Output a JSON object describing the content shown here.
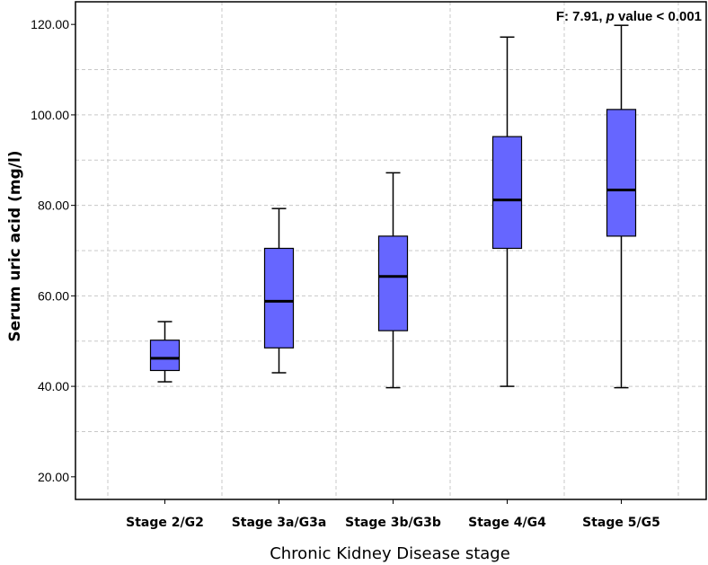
{
  "chart_data": {
    "type": "box",
    "xlabel": "Chronic Kidney Disease stage",
    "ylabel": "Serum uric acid (mg/l)",
    "annotation": {
      "prefix": "F: 7.91, ",
      "italic": "p",
      "suffix": " value < 0.001"
    },
    "ylim": [
      15,
      125
    ],
    "yticks": [
      20,
      40,
      60,
      80,
      100,
      120
    ],
    "ytick_labels": [
      "20.00",
      "40.00",
      "60.00",
      "80.00",
      "100.00",
      "120.00"
    ],
    "grid": true,
    "box_color": "#6666ff",
    "categories": [
      "Stage 2/G2",
      "Stage 3a/G3a",
      "Stage 3b/G3b",
      "Stage 4/G4",
      "Stage 5/G5"
    ],
    "boxes": [
      {
        "min": 41.0,
        "q1": 43.5,
        "median": 46.2,
        "q3": 50.2,
        "max": 54.3
      },
      {
        "min": 43.0,
        "q1": 48.5,
        "median": 58.8,
        "q3": 70.5,
        "max": 79.3
      },
      {
        "min": 39.7,
        "q1": 52.3,
        "median": 64.3,
        "q3": 73.2,
        "max": 87.2
      },
      {
        "min": 40.0,
        "q1": 70.5,
        "median": 81.2,
        "q3": 95.2,
        "max": 117.2
      },
      {
        "min": 39.7,
        "q1": 73.2,
        "median": 83.4,
        "q3": 101.2,
        "max": 119.8
      }
    ]
  }
}
